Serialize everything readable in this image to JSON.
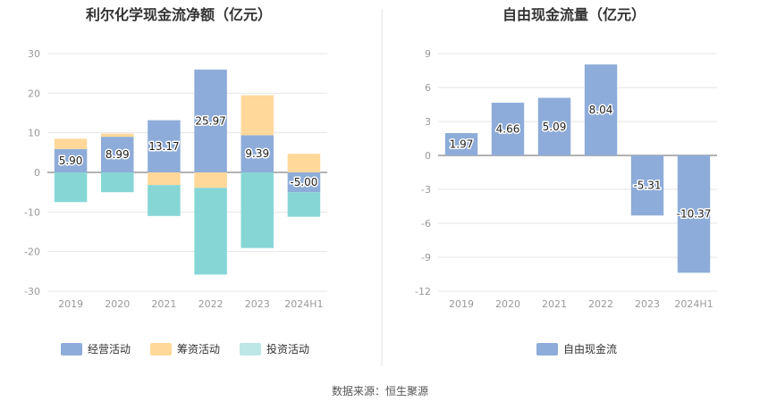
{
  "chart_data": [
    {
      "type": "bar",
      "title": "利尔化学现金流净额（亿元）",
      "categories": [
        "2019",
        "2020",
        "2021",
        "2022",
        "2023",
        "2024H1"
      ],
      "ylim": [
        -30,
        30
      ],
      "yticks": [
        30,
        20,
        10,
        0,
        -10,
        -20,
        -30
      ],
      "stacked": true,
      "grid": true,
      "legend": "bottom",
      "series": [
        {
          "name": "经营活动",
          "color": "#8eacd9",
          "values": [
            5.9,
            8.99,
            13.17,
            25.97,
            9.39,
            -5.0
          ],
          "labels": [
            "5.90",
            "8.99",
            "13.17",
            "25.97",
            "9.39",
            "-5.00"
          ]
        },
        {
          "name": "筹资活动",
          "color": "#ffd89a",
          "values": [
            2.6,
            0.8,
            -3.2,
            -3.9,
            10.1,
            4.7
          ]
        },
        {
          "name": "投资活动",
          "color": "#86d6d6",
          "values": [
            -7.5,
            -5.0,
            -7.8,
            -21.9,
            -19.1,
            -6.2
          ]
        }
      ]
    },
    {
      "type": "bar",
      "title": "自由现金流量（亿元）",
      "categories": [
        "2019",
        "2020",
        "2021",
        "2022",
        "2023",
        "2024H1"
      ],
      "ylim": [
        -12,
        9
      ],
      "yticks": [
        9,
        6,
        3,
        0,
        -3,
        -6,
        -9,
        -12
      ],
      "grid": true,
      "legend": "bottom",
      "series": [
        {
          "name": "自由现金流",
          "color": "#8eacd9",
          "values": [
            1.97,
            4.66,
            5.09,
            8.04,
            -5.31,
            -10.37
          ],
          "labels": [
            "1.97",
            "4.66",
            "5.09",
            "8.04",
            "-5.31",
            "-10.37"
          ]
        }
      ]
    }
  ],
  "legend_colors": {
    "investing_legend_swatch": "#bde7e7"
  },
  "source": "数据来源：恒生聚源"
}
